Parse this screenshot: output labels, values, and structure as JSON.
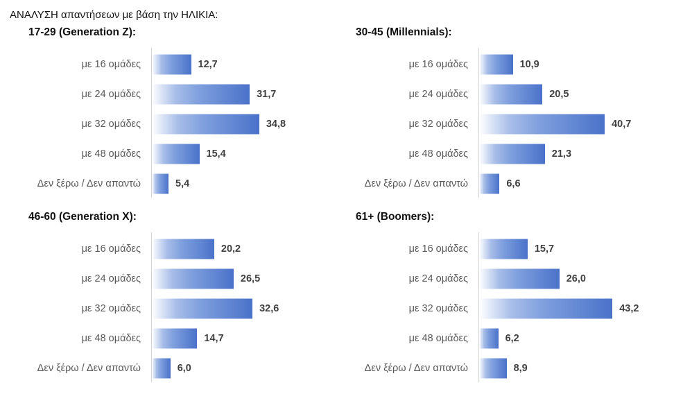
{
  "title": "ΑΝΑΛΥΣΗ απαντήσεων με βάση την ΗΛΙΚΙΑ:",
  "chart_data": [
    {
      "type": "bar",
      "orientation": "horizontal",
      "title": "17-29 (Generation Z):",
      "categories": [
        "με 16 ομάδες",
        "με 24 ομάδες",
        "με 32 ομάδες",
        "με 48 ομάδες",
        "Δεν ξέρω / Δεν απαντώ"
      ],
      "values": [
        12.7,
        31.7,
        34.8,
        15.4,
        5.4
      ],
      "value_labels": [
        "12,7",
        "31,7",
        "34,8",
        "15,4",
        "5,4"
      ]
    },
    {
      "type": "bar",
      "orientation": "horizontal",
      "title": "30-45 (Millennials):",
      "categories": [
        "με 16 ομάδες",
        "με 24 ομάδες",
        "με 32 ομάδες",
        "με 48 ομάδες",
        "Δεν ξέρω / Δεν απαντώ"
      ],
      "values": [
        10.9,
        20.5,
        40.7,
        21.3,
        6.6
      ],
      "value_labels": [
        "10,9",
        "20,5",
        "40,7",
        "21,3",
        "6,6"
      ]
    },
    {
      "type": "bar",
      "orientation": "horizontal",
      "title": "46-60 (Generation X):",
      "categories": [
        "με 16 ομάδες",
        "με 24 ομάδες",
        "με 32 ομάδες",
        "με 48 ομάδες",
        "Δεν ξέρω / Δεν απαντώ"
      ],
      "values": [
        20.2,
        26.5,
        32.6,
        14.7,
        6.0
      ],
      "value_labels": [
        "20,2",
        "26,5",
        "32,6",
        "14,7",
        "6,0"
      ]
    },
    {
      "type": "bar",
      "orientation": "horizontal",
      "title": "61+ (Boomers):",
      "categories": [
        "με 16 ομάδες",
        "με 24 ομάδες",
        "με 32 ομάδες",
        "με 48 ομάδες",
        "Δεν ξέρω / Δεν απαντώ"
      ],
      "values": [
        15.7,
        26.0,
        43.2,
        6.2,
        8.9
      ],
      "value_labels": [
        "15,7",
        "26,0",
        "43,2",
        "6,2",
        "8,9"
      ]
    }
  ],
  "colors": {
    "bar_fill": "#4a72c9",
    "bar_fade": "#ffffff",
    "value_text": "#404040",
    "category_text": "#595959",
    "axis": "#d4d4d4"
  }
}
